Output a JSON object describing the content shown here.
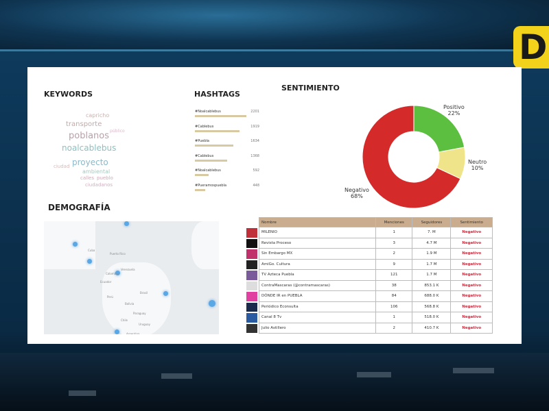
{
  "channel_logo": "D",
  "keywords": {
    "title": "KEYWORDS",
    "words": [
      "capricho",
      "transporte",
      "poblanos",
      "noalcablebus",
      "proyecto",
      "ambiental",
      "calles",
      "pueblo",
      "ciudadanos",
      "ciudad",
      "público"
    ]
  },
  "hashtags": {
    "title": "HASHTAGS",
    "items": [
      {
        "tag": "#Noalcablebus",
        "count": "2201",
        "value": 2201
      },
      {
        "tag": "#Cablebus",
        "count": "1919",
        "value": 1919
      },
      {
        "tag": "#Puebla",
        "count": "1634",
        "value": 1634
      },
      {
        "tag": "#Cablebus",
        "count": "1368",
        "value": 1368
      },
      {
        "tag": "#Noalcablebus",
        "count": "592",
        "value": 592
      },
      {
        "tag": "#Pueramospuebla",
        "count": "448",
        "value": 448
      }
    ]
  },
  "sentiment": {
    "title": "SENTIMIENTO",
    "slices": [
      {
        "label": "Positivo",
        "pct": "22%",
        "value": 22,
        "color": "#5cbf3f"
      },
      {
        "label": "Neutro",
        "pct": "10%",
        "value": 10,
        "color": "#f0e48a"
      },
      {
        "label": "Negativo",
        "pct": "68%",
        "value": 68,
        "color": "#d42a2a"
      }
    ]
  },
  "demography": {
    "title": "DEMOGRAFÍA",
    "places": [
      "Cuba",
      "Puerto Rico",
      "Venezuela",
      "Colombia",
      "Ecuador",
      "Perú",
      "Brasil",
      "Bolivia",
      "Paraguay",
      "Chile",
      "Uruguay",
      "Argentina"
    ]
  },
  "table": {
    "headers": [
      "Nombre",
      "Menciones",
      "Seguidores",
      "Sentimiento"
    ],
    "rows": [
      [
        "MILENIO",
        "1",
        "7. M",
        "Negativo"
      ],
      [
        "Revista Proceso",
        "3",
        "4.7 M",
        "Negativo"
      ],
      [
        "Sin Embargo MX",
        "2",
        "1.9 M",
        "Negativo"
      ],
      [
        "AmiGo. Cultura",
        "9",
        "1.7 M",
        "Negativo"
      ],
      [
        "TV Azteca Puebla",
        "121",
        "1.7 M",
        "Negativo"
      ],
      [
        "ContraMascaras (@contramascaras)",
        "38",
        "853.1 K",
        "Negativo"
      ],
      [
        "DÓNDE IR en PUEBLA",
        "84",
        "688.0 K",
        "Negativo"
      ],
      [
        "Periódico Econsulta",
        "106",
        "568.8 K",
        "Negativo"
      ],
      [
        "Canal 8 Tv",
        "1",
        "518.0 K",
        "Negativo"
      ],
      [
        "Julio Astillero",
        "2",
        "410.7 K",
        "Negativo"
      ]
    ],
    "logo_colors": [
      "#c0303a",
      "#111111",
      "#c0306a",
      "#222222",
      "#7a5a9a",
      "#dddddd",
      "#e040a0",
      "#1a2a4a",
      "#2a5aa0",
      "#333333"
    ]
  }
}
